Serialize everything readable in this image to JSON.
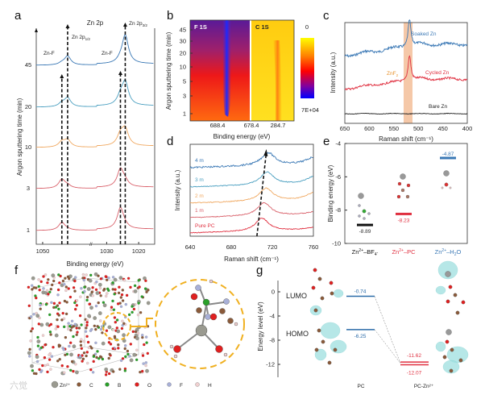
{
  "panels": {
    "a": "a",
    "b": "b",
    "c": "c",
    "d": "d",
    "e": "e",
    "f": "f",
    "g": "g"
  },
  "chart_data": [
    {
      "panel": "a",
      "type": "line",
      "title": "Zn 2p",
      "xlabel": "Binding energy (eV)",
      "ylabel": "Argon sputtering time (min)",
      "xlim": [
        1052,
        1015
      ],
      "xticks": [
        "1050",
        "1030",
        "1020"
      ],
      "annotations": {
        "zn2p12_main": "Zn 2p",
        "zn2p12_sub": "1/2",
        "zn2p32_main": "Zn 2p",
        "zn2p32_sub": "3/2",
        "znf_left": "Zn-F",
        "znf_right": "Zn-F"
      },
      "series": [
        {
          "name": "45",
          "color": "#3a78b5",
          "peaks": [
            [
              1044,
              0.2
            ],
            [
              1042.2,
              1.0
            ],
            [
              1025.7,
              0.3
            ],
            [
              1024.2,
              3.2
            ]
          ]
        },
        {
          "name": "20",
          "color": "#4a9fc0",
          "peaks": [
            [
              1044,
              0.4
            ],
            [
              1042.2,
              1.0
            ],
            [
              1025.7,
              0.9
            ],
            [
              1024.2,
              2.6
            ]
          ]
        },
        {
          "name": "10",
          "color": "#f0a860",
          "peaks": [
            [
              1044,
              0.6
            ],
            [
              1042.2,
              0.8
            ],
            [
              1025.7,
              1.2
            ],
            [
              1024.2,
              1.8
            ]
          ]
        },
        {
          "name": "3",
          "color": "#d9606a",
          "peaks": [
            [
              1044,
              1.0
            ],
            [
              1042.2,
              0.3
            ],
            [
              1025.7,
              2.0
            ],
            [
              1024.2,
              0.5
            ]
          ]
        },
        {
          "name": "1",
          "color": "#d9606a",
          "peaks": [
            [
              1044,
              0.9
            ],
            [
              1042.2,
              0.1
            ],
            [
              1025.7,
              2.4
            ],
            [
              1024.2,
              0.2
            ]
          ]
        }
      ]
    },
    {
      "panel": "b",
      "type": "heatmap",
      "xlabel": "Binding energy (eV)",
      "ylabel": "Argon sputtering time (min)",
      "xticks": [
        "688.4",
        "678.4",
        "284.7"
      ],
      "yticks": [
        "45",
        "30",
        "20",
        "10",
        "5",
        "3",
        "1"
      ],
      "regions": [
        "F 1S",
        "C 1S"
      ],
      "colorbar": {
        "max_label": "0",
        "min_label": "7E+04",
        "colors": [
          "#ffff00",
          "#ff8000",
          "#ff0000",
          "#8000a0",
          "#0000ff"
        ]
      }
    },
    {
      "panel": "c",
      "type": "line",
      "xlabel": "Raman shift (cm⁻¹)",
      "ylabel": "Intensity (a.u.)",
      "xlim": [
        650,
        400
      ],
      "xticks": [
        "650",
        "600",
        "550",
        "500",
        "450",
        "400"
      ],
      "highlight": {
        "label_main": "ZnF",
        "label_sub": "2",
        "range": [
          528,
          512
        ],
        "color": "#f5c8a8"
      },
      "series": [
        {
          "name": "Soaked Zn",
          "color": "#3a78b5",
          "peak": 518,
          "peak_height": 1.0
        },
        {
          "name": "Cycled Zn",
          "color": "#e03040",
          "peak": 518,
          "peak_height": 1.0
        },
        {
          "name": "Bare Zn",
          "color": "#222222",
          "peak": null,
          "peak_height": 0
        }
      ]
    },
    {
      "panel": "d",
      "type": "line",
      "xlabel": "Raman shift (cm⁻¹)",
      "ylabel": "Intensity (a.u.)",
      "xlim": [
        640,
        760
      ],
      "xticks": [
        "640",
        "680",
        "720",
        "760"
      ],
      "series": [
        {
          "name": "4 m",
          "color": "#3a78b5",
          "peak": 716
        },
        {
          "name": "3 m",
          "color": "#4a9fc0",
          "peak": 715
        },
        {
          "name": "2 m",
          "color": "#f0a860",
          "peak": 714
        },
        {
          "name": "1 m",
          "color": "#d9606a",
          "peak": 712
        },
        {
          "name": "Pure PC",
          "color": "#e03040",
          "peak": 710
        }
      ]
    },
    {
      "panel": "e",
      "type": "bar",
      "ylabel": "Binding energy (eV)",
      "ylim": [
        -10,
        -4
      ],
      "yticks": [
        "-4",
        "-6",
        "-8",
        "-10"
      ],
      "categories": [
        {
          "main": "Zn",
          "sup": "2+",
          "rest": "–BF",
          "sub": "4",
          "sup2": "-",
          "color": "#111111"
        },
        {
          "main": "Zn",
          "sup": "2+",
          "rest": "–PC",
          "sub": "",
          "sup2": "",
          "color": "#e03040"
        },
        {
          "main": "Zn",
          "sup": "2+",
          "rest": "–H",
          "sub": "2",
          "sup2": "O",
          "color": "#3a78b5"
        }
      ],
      "values": [
        -8.89,
        -8.23,
        -4.87
      ],
      "value_labels": [
        "-8.89",
        "-8.23",
        "-4.87"
      ]
    },
    {
      "panel": "g",
      "type": "line",
      "ylabel": "Energy level (eV)",
      "ylim": [
        -14,
        2
      ],
      "yticks": [
        "0",
        "-4",
        "-8",
        "-12"
      ],
      "orbital_labels": [
        "LUMO",
        "HOMO"
      ],
      "categories": [
        "PC",
        "PC-Zn²⁺"
      ],
      "levels": {
        "PC": {
          "values": [
            -0.74,
            -6.25
          ],
          "labels": [
            "-0.74",
            "-6.25"
          ],
          "color": "#2a6aa8"
        },
        "PC-Zn": {
          "values": [
            -11.62,
            -12.07
          ],
          "labels": [
            "-11.62",
            "-12.07"
          ],
          "color": "#e03040"
        }
      }
    }
  ],
  "panel_f": {
    "legend": [
      {
        "label": "Zn²⁺",
        "color": "#9a9a90"
      },
      {
        "label": "C",
        "color": "#8a5a3a"
      },
      {
        "label": "B",
        "color": "#2aa02a"
      },
      {
        "label": "O",
        "color": "#e02020"
      },
      {
        "label": "F",
        "color": "#a8b0d8"
      },
      {
        "label": "H",
        "color": "#f0d0d0"
      }
    ],
    "watermark": "六觉"
  }
}
